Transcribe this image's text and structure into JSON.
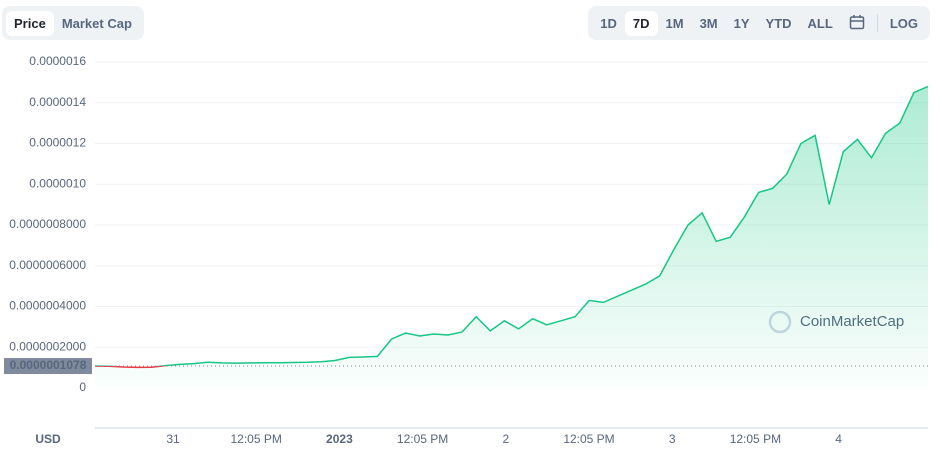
{
  "controls": {
    "view_tabs": [
      "Price",
      "Market Cap"
    ],
    "active_view": 0,
    "ranges": [
      "1D",
      "7D",
      "1M",
      "3M",
      "1Y",
      "YTD",
      "ALL"
    ],
    "active_range": 1,
    "log": "LOG"
  },
  "chart_data": {
    "type": "area",
    "series": [
      {
        "name": "Price",
        "color": "#16c784",
        "values": [
          1.08e-07,
          1.07e-07,
          1.03e-07,
          1.01e-07,
          1.02e-07,
          1.1e-07,
          1.16e-07,
          1.2e-07,
          1.26e-07,
          1.23e-07,
          1.22e-07,
          1.23e-07,
          1.24e-07,
          1.24e-07,
          1.25e-07,
          1.26e-07,
          1.29e-07,
          1.35e-07,
          1.5e-07,
          1.52e-07,
          1.55e-07,
          2.4e-07,
          2.7e-07,
          2.55e-07,
          2.65e-07,
          2.6e-07,
          2.75e-07,
          3.5e-07,
          2.8e-07,
          3.3e-07,
          2.9e-07,
          3.4e-07,
          3.1e-07,
          3.3e-07,
          3.5e-07,
          4.3e-07,
          4.2e-07,
          4.5e-07,
          4.8e-07,
          5.1e-07,
          5.5e-07,
          6.8e-07,
          8e-07,
          8.6e-07,
          7.2e-07,
          7.4e-07,
          8.4e-07,
          9.6e-07,
          9.8e-07,
          1.05e-06,
          1.2e-06,
          1.24e-06,
          9e-07,
          1.16e-06,
          1.22e-06,
          1.13e-06,
          1.25e-06,
          1.3e-06,
          1.45e-06,
          1.48e-06
        ]
      }
    ],
    "below_color": "#ea3943",
    "ylim": [
      0,
      1.6e-06
    ],
    "yticks": [
      {
        "value": 0,
        "label": "0"
      },
      {
        "value": 2e-07,
        "label": "0.0000002000"
      },
      {
        "value": 4e-07,
        "label": "0.0000004000"
      },
      {
        "value": 6e-07,
        "label": "0.0000006000"
      },
      {
        "value": 8e-07,
        "label": "0.0000008000"
      },
      {
        "value": 1e-06,
        "label": "0.0000010"
      },
      {
        "value": 1.2e-06,
        "label": "0.0000012"
      },
      {
        "value": 1.4e-06,
        "label": "0.0000014"
      },
      {
        "value": 1.6e-06,
        "label": "0.0000016"
      }
    ],
    "reference": {
      "value": 1.078e-07,
      "label": "0.0000001078"
    },
    "xtick_labels": [
      "31",
      "12:05 PM",
      "2023",
      "12:05 PM",
      "2",
      "12:05 PM",
      "3",
      "12:05 PM",
      "4"
    ],
    "currency": "USD",
    "watermark": "CoinMarketCap",
    "grid": true
  }
}
